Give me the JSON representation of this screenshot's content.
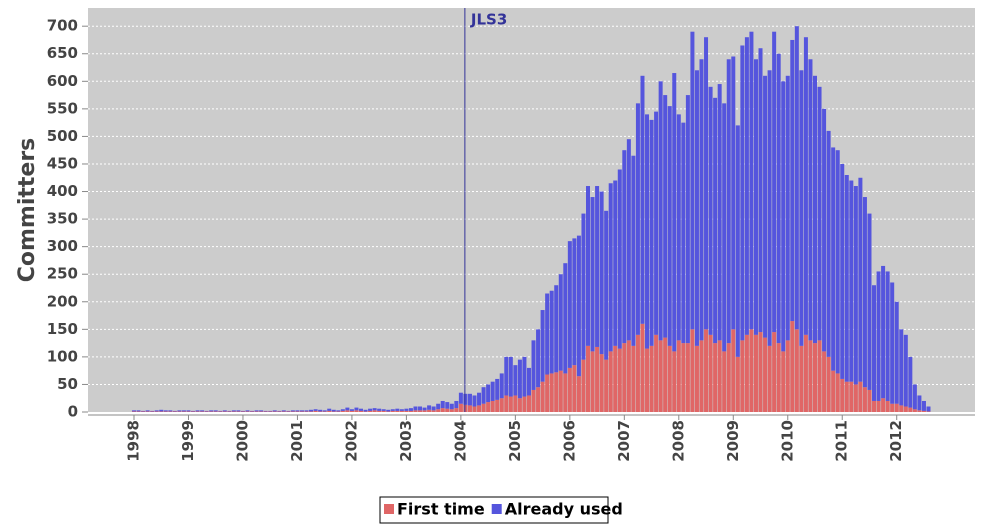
{
  "chart_data": {
    "type": "stacked-bar",
    "y_label": "Committers",
    "categories": [
      "1998",
      null,
      null,
      null,
      null,
      null,
      null,
      null,
      null,
      null,
      null,
      null,
      "1999",
      null,
      null,
      null,
      null,
      null,
      null,
      null,
      null,
      null,
      null,
      null,
      "2000",
      null,
      null,
      null,
      null,
      null,
      null,
      null,
      null,
      null,
      null,
      null,
      "2001",
      null,
      null,
      null,
      null,
      null,
      null,
      null,
      null,
      null,
      null,
      null,
      "2002",
      null,
      null,
      null,
      null,
      null,
      null,
      null,
      null,
      null,
      null,
      null,
      "2003",
      null,
      null,
      null,
      null,
      null,
      null,
      null,
      null,
      null,
      null,
      null,
      "2004",
      null,
      null,
      null,
      null,
      null,
      null,
      null,
      null,
      null,
      null,
      null,
      "2005",
      null,
      null,
      null,
      null,
      null,
      null,
      null,
      null,
      null,
      null,
      null,
      "2006",
      null,
      null,
      null,
      null,
      null,
      null,
      null,
      null,
      null,
      null,
      null,
      "2007",
      null,
      null,
      null,
      null,
      null,
      null,
      null,
      null,
      null,
      null,
      null,
      "2008",
      null,
      null,
      null,
      null,
      null,
      null,
      null,
      null,
      null,
      null,
      null,
      "2009",
      null,
      null,
      null,
      null,
      null,
      null,
      null,
      null,
      null,
      null,
      null,
      "2010",
      null,
      null,
      null,
      null,
      null,
      null,
      null,
      null,
      null,
      null,
      null,
      "2011",
      null,
      null,
      null,
      null,
      null,
      null,
      null,
      null,
      null,
      null,
      null,
      "2012",
      null,
      null,
      null,
      null,
      null,
      null,
      null,
      null,
      null,
      null,
      null
    ],
    "series": [
      {
        "name": "First time",
        "color": "#e06666",
        "values": [
          1,
          1,
          1,
          1,
          1,
          1,
          1,
          1,
          1,
          1,
          1,
          1,
          1,
          1,
          1,
          1,
          1,
          1,
          1,
          1,
          1,
          1,
          1,
          1,
          1,
          1,
          1,
          1,
          1,
          1,
          1,
          1,
          1,
          1,
          1,
          1,
          1,
          1,
          1,
          1,
          2,
          1,
          1,
          2,
          1,
          1,
          2,
          3,
          2,
          3,
          2,
          1,
          2,
          3,
          2,
          2,
          1,
          2,
          2,
          2,
          2,
          2,
          3,
          3,
          3,
          4,
          3,
          5,
          7,
          6,
          5,
          7,
          15,
          13,
          12,
          10,
          12,
          15,
          18,
          20,
          22,
          25,
          30,
          28,
          30,
          25,
          28,
          30,
          40,
          45,
          55,
          68,
          70,
          72,
          75,
          70,
          80,
          85,
          65,
          95,
          120,
          110,
          118,
          105,
          95,
          110,
          120,
          115,
          125,
          130,
          120,
          140,
          160,
          115,
          120,
          140,
          130,
          135,
          120,
          110,
          130,
          125,
          125,
          150,
          120,
          130,
          150,
          140,
          125,
          130,
          110,
          125,
          150,
          100,
          130,
          140,
          150,
          140,
          145,
          135,
          120,
          145,
          125,
          110,
          130,
          165,
          150,
          120,
          140,
          130,
          125,
          130,
          110,
          100,
          75,
          70,
          60,
          55,
          55,
          50,
          55,
          45,
          40,
          20,
          20,
          25,
          20,
          15,
          15,
          12,
          10,
          8,
          5,
          3,
          2,
          1,
          0,
          0,
          0,
          0
        ]
      },
      {
        "name": "Already used",
        "color": "#5555dd",
        "values": [
          2,
          2,
          1,
          2,
          1,
          2,
          3,
          2,
          2,
          1,
          2,
          2,
          2,
          1,
          2,
          2,
          1,
          2,
          2,
          1,
          2,
          1,
          2,
          2,
          1,
          2,
          1,
          2,
          2,
          1,
          1,
          2,
          1,
          2,
          1,
          2,
          2,
          2,
          2,
          3,
          3,
          3,
          2,
          4,
          3,
          2,
          3,
          5,
          3,
          5,
          4,
          3,
          4,
          4,
          4,
          3,
          3,
          3,
          4,
          3,
          4,
          5,
          7,
          7,
          5,
          8,
          7,
          10,
          13,
          12,
          10,
          13,
          20,
          20,
          21,
          20,
          23,
          30,
          32,
          35,
          38,
          45,
          70,
          72,
          55,
          70,
          72,
          50,
          90,
          105,
          130,
          147,
          150,
          158,
          175,
          200,
          230,
          230,
          255,
          265,
          290,
          280,
          292,
          295,
          270,
          305,
          300,
          325,
          350,
          365,
          345,
          420,
          450,
          425,
          410,
          405,
          470,
          440,
          435,
          505,
          410,
          400,
          450,
          540,
          500,
          510,
          530,
          450,
          445,
          465,
          450,
          515,
          495,
          420,
          535,
          540,
          540,
          500,
          515,
          475,
          500,
          545,
          525,
          490,
          480,
          510,
          550,
          500,
          540,
          510,
          485,
          460,
          440,
          410,
          405,
          405,
          390,
          375,
          365,
          360,
          370,
          345,
          320,
          210,
          235,
          240,
          235,
          220,
          185,
          138,
          130,
          92,
          45,
          27,
          18,
          9,
          0,
          0,
          0,
          0
        ]
      }
    ],
    "ylim": [
      0,
      733
    ],
    "yticks": [
      0,
      50,
      100,
      150,
      200,
      250,
      300,
      350,
      400,
      450,
      500,
      550,
      600,
      650,
      700
    ],
    "grid": true,
    "background": "#cccccc",
    "annotations": [
      {
        "text": "JLS3",
        "x": "2004",
        "color": "#333399"
      }
    ],
    "legend": "bottom"
  }
}
